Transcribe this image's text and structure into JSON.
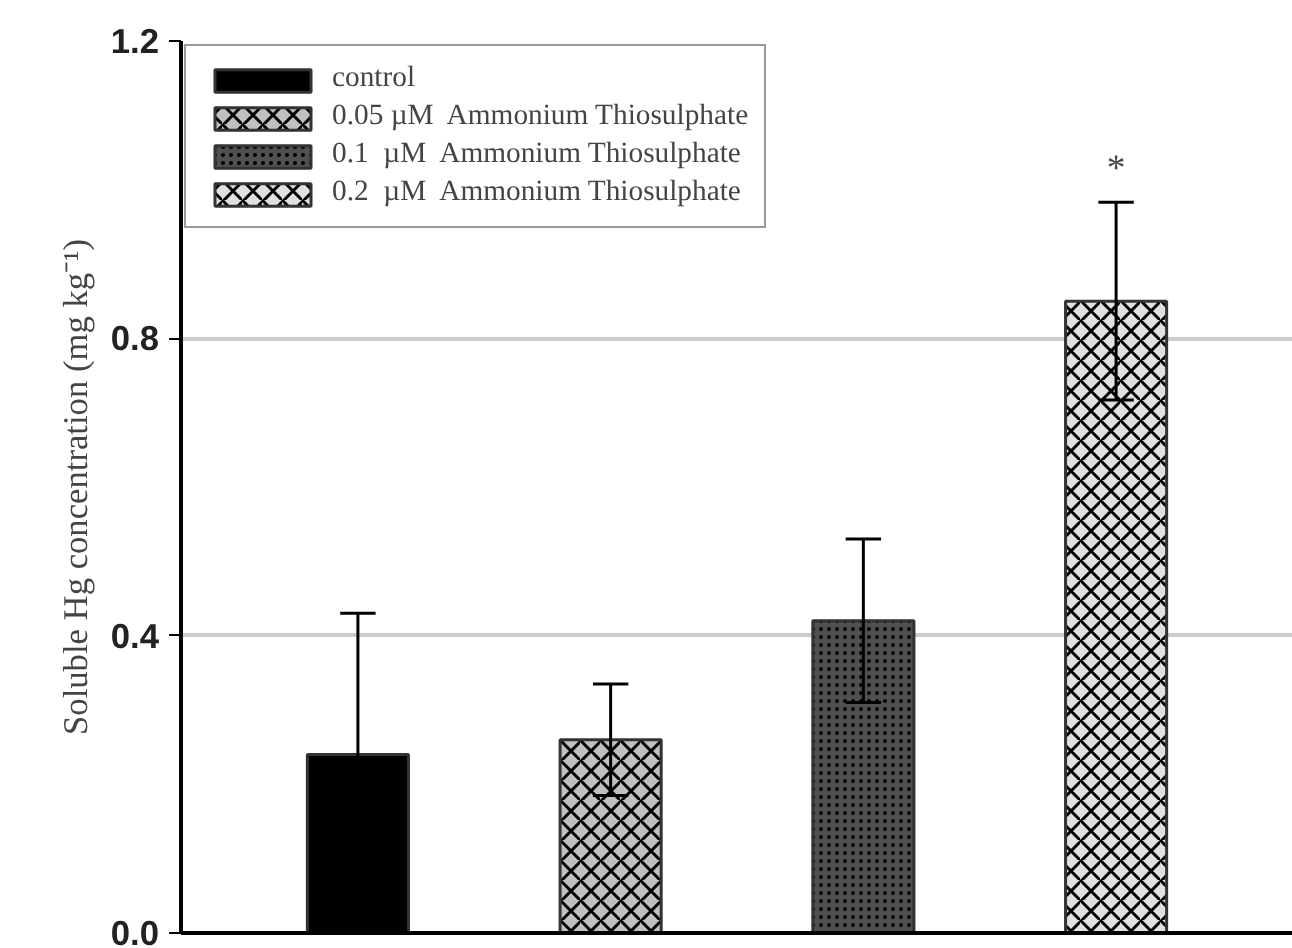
{
  "chart_data": {
    "type": "bar",
    "ylabel": "Soluble Hg concentration (mg kg⁻¹)",
    "categories": [
      null,
      null,
      null,
      null
    ],
    "series": [
      {
        "name": "control",
        "color": "#000000",
        "values": [
          0.24,
          null,
          null,
          null
        ],
        "errors": [
          0.19,
          null,
          null,
          null
        ]
      },
      {
        "name": "0.05 µM  Ammonium Thiosulphate",
        "color": "#c0c0c0",
        "values": [
          null,
          0.26,
          null,
          null
        ],
        "errors": [
          null,
          0.075,
          null,
          null
        ]
      },
      {
        "name": "0.1  µM  Ammonium Thiosulphate",
        "color": "#505050",
        "values": [
          null,
          null,
          0.42,
          null
        ],
        "errors": [
          null,
          null,
          0.11,
          null
        ]
      },
      {
        "name": "0.2  µM  Ammonium Thiosulphate",
        "color": "#e0e0e0",
        "values": [
          null,
          null,
          null,
          0.85
        ],
        "errors": [
          null,
          null,
          null,
          0.133
        ]
      }
    ],
    "ylim": [
      0,
      1.2
    ],
    "yticks": [
      {
        "value": 0,
        "label": "0.0"
      },
      0.4,
      0.8,
      1.2
    ],
    "annotations": [
      "*"
    ],
    "grid": "y",
    "legend": "top left",
    "tick_labels": "y"
  }
}
